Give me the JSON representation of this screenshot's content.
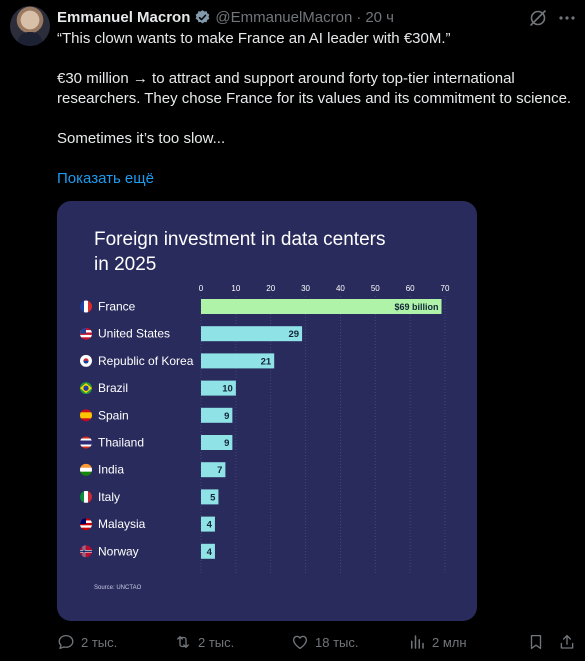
{
  "author": {
    "name": "Emmanuel Macron",
    "handle": "@EmmanuelMacron",
    "separator": "·",
    "time": "20 ч"
  },
  "tweet": {
    "line1": "“This clown wants to make France an AI leader with €30M.”",
    "line2": "€30 million → to attract and support around forty top-tier international researchers. They chose France for its values and its commitment to science.",
    "line3": "Sometimes it’s too slow...",
    "show_more": "Показать ещё"
  },
  "chart_data": {
    "type": "bar",
    "orientation": "horizontal",
    "title": "Foreign investment in data centers in 2025",
    "source": "Source: UNCTAO",
    "categories": [
      "France",
      "United States",
      "Republic of Korea",
      "Brazil",
      "Spain",
      "Thailand",
      "India",
      "Italy",
      "Malaysia",
      "Norway"
    ],
    "values": [
      69,
      29,
      21,
      10,
      9,
      9,
      7,
      5,
      4,
      4
    ],
    "data_labels": [
      "$69 billion",
      "29",
      "21",
      "10",
      "9",
      "9",
      "7",
      "5",
      "4",
      "4"
    ],
    "x_ticks": [
      0,
      10,
      20,
      30,
      40,
      50,
      60,
      70
    ],
    "xlim": [
      0,
      70
    ],
    "grid": true,
    "colors": {
      "background": "#292b5c",
      "bar_top": "#aef3a8",
      "bar": "#8fe3e6",
      "text": "#ffffff",
      "grid": "#4a4d82"
    }
  },
  "actions": {
    "replies": "2 тыс.",
    "retweets": "2 тыс.",
    "likes": "18 тыс.",
    "views": "2 млн"
  },
  "icons": [
    "verified-badge-icon",
    "grok-icon",
    "more-icon",
    "reply-icon",
    "retweet-icon",
    "like-icon",
    "views-icon",
    "bookmark-icon",
    "share-icon"
  ],
  "colors": {
    "background": "#000000",
    "text": "#e7e9ea",
    "muted": "#71767b",
    "link": "#1d9bf0",
    "verified": "#829aab"
  }
}
